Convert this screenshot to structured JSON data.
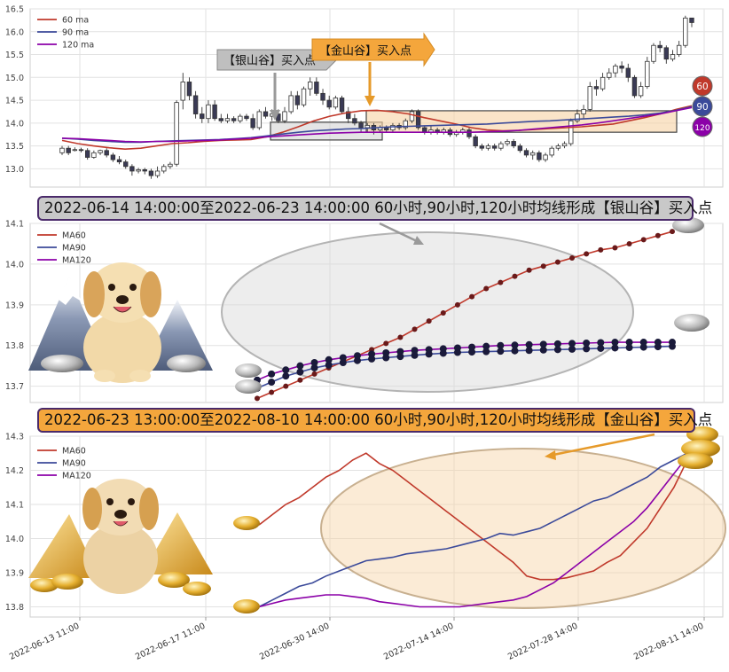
{
  "chart_data": [
    {
      "type": "candlestick",
      "title": "",
      "ylim": [
        12.6,
        16.5
      ],
      "yticks": [
        "13.0",
        "13.5",
        "14.0",
        "14.5",
        "15.0",
        "15.5",
        "16.0",
        "16.5"
      ],
      "legend": {
        "placement": "top-left",
        "entries": [
          "60 ma",
          "90 ma",
          "120 ma"
        ]
      },
      "series": [
        {
          "name": "60 ma",
          "color": "#c0392b",
          "values": [
            13.62,
            13.55,
            13.5,
            13.46,
            13.43,
            13.45,
            13.5,
            13.55,
            13.57,
            13.6,
            13.62,
            13.63,
            13.64,
            13.7,
            13.8,
            13.92,
            14.05,
            14.15,
            14.22,
            14.27,
            14.28,
            14.25,
            14.2,
            14.12,
            14.05,
            13.98,
            13.9,
            13.85,
            13.83,
            13.84,
            13.86,
            13.88,
            13.9,
            13.92,
            13.95,
            13.98,
            14.05,
            14.12,
            14.2,
            14.3,
            14.38
          ]
        },
        {
          "name": "90 ma",
          "color": "#3b4a9a",
          "values": [
            13.67,
            13.65,
            13.62,
            13.6,
            13.58,
            13.58,
            13.6,
            13.61,
            13.62,
            13.63,
            13.64,
            13.66,
            13.68,
            13.72,
            13.76,
            13.8,
            13.83,
            13.85,
            13.87,
            13.88,
            13.9,
            13.92,
            13.93,
            13.94,
            13.95,
            13.96,
            13.97,
            13.98,
            14.0,
            14.02,
            14.04,
            14.05,
            14.07,
            14.09,
            14.11,
            14.13,
            14.15,
            14.18,
            14.22,
            14.28,
            14.36
          ]
        },
        {
          "name": "120 ma",
          "color": "#8b00a8",
          "values": [
            13.67,
            13.66,
            13.64,
            13.62,
            13.6,
            13.59,
            13.6,
            13.6,
            13.61,
            13.62,
            13.63,
            13.65,
            13.67,
            13.7,
            13.72,
            13.74,
            13.76,
            13.78,
            13.79,
            13.8,
            13.8,
            13.8,
            13.8,
            13.8,
            13.8,
            13.8,
            13.8,
            13.81,
            13.82,
            13.84,
            13.87,
            13.9,
            13.93,
            13.96,
            14.0,
            14.05,
            14.1,
            14.15,
            14.2,
            14.27,
            14.34
          ]
        }
      ],
      "candles": [
        [
          13.35,
          13.45,
          13.3,
          13.5
        ],
        [
          13.45,
          13.35,
          13.3,
          13.5
        ],
        [
          13.4,
          13.42,
          13.38,
          13.47
        ],
        [
          13.42,
          13.4,
          13.36,
          13.46
        ],
        [
          13.4,
          13.25,
          13.2,
          13.45
        ],
        [
          13.25,
          13.35,
          13.22,
          13.4
        ],
        [
          13.35,
          13.4,
          13.3,
          13.42
        ],
        [
          13.4,
          13.3,
          13.25,
          13.45
        ],
        [
          13.3,
          13.2,
          13.15,
          13.35
        ],
        [
          13.2,
          13.15,
          13.1,
          13.28
        ],
        [
          13.15,
          13.05,
          13.0,
          13.2
        ],
        [
          13.05,
          12.95,
          12.85,
          13.1
        ],
        [
          12.95,
          12.98,
          12.9,
          13.02
        ],
        [
          12.98,
          12.95,
          12.88,
          13.02
        ],
        [
          12.95,
          12.85,
          12.78,
          13.0
        ],
        [
          12.85,
          12.95,
          12.8,
          13.05
        ],
        [
          12.95,
          13.05,
          12.9,
          13.1
        ],
        [
          13.05,
          13.1,
          13.0,
          13.15
        ],
        [
          13.1,
          14.45,
          13.05,
          14.5
        ],
        [
          14.5,
          14.9,
          14.3,
          15.1
        ],
        [
          14.9,
          14.6,
          14.5,
          15.0
        ],
        [
          14.6,
          14.2,
          14.1,
          14.7
        ],
        [
          14.2,
          14.1,
          14.0,
          14.35
        ],
        [
          14.1,
          14.4,
          14.0,
          14.5
        ],
        [
          14.4,
          14.1,
          14.05,
          14.5
        ],
        [
          14.1,
          14.05,
          14.0,
          14.2
        ],
        [
          14.05,
          14.1,
          14.0,
          14.2
        ],
        [
          14.1,
          14.05,
          14.0,
          14.15
        ],
        [
          14.05,
          14.15,
          14.0,
          14.2
        ],
        [
          14.15,
          14.1,
          14.05,
          14.2
        ],
        [
          14.1,
          13.9,
          13.85,
          14.2
        ],
        [
          13.9,
          14.25,
          13.85,
          14.3
        ],
        [
          14.25,
          14.15,
          14.1,
          14.35
        ],
        [
          14.15,
          14.2,
          14.05,
          14.3
        ],
        [
          14.2,
          14.05,
          14.0,
          14.3
        ],
        [
          14.05,
          14.25,
          14.0,
          14.35
        ],
        [
          14.25,
          14.6,
          14.2,
          14.7
        ],
        [
          14.6,
          14.4,
          14.3,
          14.7
        ],
        [
          14.4,
          14.75,
          14.35,
          14.8
        ],
        [
          14.75,
          14.9,
          14.6,
          15.0
        ],
        [
          14.9,
          14.65,
          14.6,
          15.0
        ],
        [
          14.65,
          14.5,
          14.4,
          14.75
        ],
        [
          14.5,
          14.35,
          14.3,
          14.6
        ],
        [
          14.35,
          14.55,
          14.3,
          14.6
        ],
        [
          14.55,
          14.25,
          14.2,
          14.6
        ],
        [
          14.25,
          14.1,
          14.0,
          14.35
        ],
        [
          14.1,
          14.0,
          13.95,
          14.2
        ],
        [
          14.0,
          13.9,
          13.8,
          14.05
        ],
        [
          13.9,
          13.95,
          13.8,
          14.0
        ],
        [
          13.95,
          13.85,
          13.75,
          14.0
        ],
        [
          13.85,
          13.9,
          13.8,
          13.95
        ],
        [
          13.9,
          13.85,
          13.8,
          13.95
        ],
        [
          13.85,
          13.95,
          13.8,
          14.0
        ],
        [
          13.95,
          13.9,
          13.85,
          14.0
        ],
        [
          13.9,
          14.05,
          13.85,
          14.1
        ],
        [
          14.05,
          14.25,
          14.0,
          14.3
        ],
        [
          14.25,
          13.9,
          13.85,
          14.3
        ],
        [
          13.9,
          13.8,
          13.75,
          13.95
        ],
        [
          13.8,
          13.85,
          13.75,
          13.95
        ],
        [
          13.85,
          13.8,
          13.75,
          13.9
        ],
        [
          13.8,
          13.85,
          13.75,
          13.9
        ],
        [
          13.85,
          13.75,
          13.7,
          13.9
        ],
        [
          13.75,
          13.8,
          13.7,
          13.85
        ],
        [
          13.8,
          13.85,
          13.75,
          13.9
        ],
        [
          13.85,
          13.7,
          13.65,
          13.9
        ],
        [
          13.7,
          13.5,
          13.45,
          13.75
        ],
        [
          13.5,
          13.45,
          13.4,
          13.55
        ],
        [
          13.45,
          13.5,
          13.4,
          13.55
        ],
        [
          13.5,
          13.45,
          13.4,
          13.55
        ],
        [
          13.45,
          13.55,
          13.4,
          13.6
        ],
        [
          13.55,
          13.6,
          13.5,
          13.65
        ],
        [
          13.6,
          13.5,
          13.45,
          13.65
        ],
        [
          13.5,
          13.4,
          13.35,
          13.55
        ],
        [
          13.4,
          13.3,
          13.25,
          13.45
        ],
        [
          13.3,
          13.35,
          13.2,
          13.4
        ],
        [
          13.35,
          13.2,
          13.15,
          13.4
        ],
        [
          13.2,
          13.3,
          13.15,
          13.35
        ],
        [
          13.3,
          13.45,
          13.25,
          13.5
        ],
        [
          13.45,
          13.5,
          13.4,
          13.55
        ],
        [
          13.5,
          13.55,
          13.45,
          13.6
        ],
        [
          13.55,
          14.05,
          13.5,
          14.1
        ],
        [
          14.05,
          14.2,
          14.0,
          14.3
        ],
        [
          14.2,
          14.3,
          14.1,
          14.4
        ],
        [
          14.3,
          14.8,
          14.25,
          14.9
        ],
        [
          14.8,
          14.75,
          14.6,
          14.95
        ],
        [
          14.75,
          15.0,
          14.7,
          15.1
        ],
        [
          15.0,
          15.1,
          14.95,
          15.2
        ],
        [
          15.1,
          15.25,
          15.0,
          15.3
        ],
        [
          15.25,
          15.2,
          15.1,
          15.35
        ],
        [
          15.2,
          15.0,
          14.9,
          15.3
        ],
        [
          15.0,
          14.6,
          14.55,
          15.05
        ],
        [
          14.6,
          14.8,
          14.55,
          14.9
        ],
        [
          14.8,
          15.35,
          14.75,
          15.45
        ],
        [
          15.35,
          15.7,
          15.3,
          15.75
        ],
        [
          15.7,
          15.65,
          15.55,
          15.8
        ],
        [
          15.65,
          15.4,
          15.3,
          15.7
        ],
        [
          15.4,
          15.5,
          15.35,
          15.6
        ],
        [
          15.5,
          15.7,
          15.45,
          15.8
        ],
        [
          15.7,
          16.3,
          15.65,
          16.35
        ],
        [
          16.3,
          16.2,
          16.1,
          16.3
        ]
      ],
      "annotations": [
        {
          "text": "【银山谷】买入点"
        },
        {
          "text": "【金山谷】买入点"
        }
      ],
      "badges": [
        "60",
        "90",
        "120"
      ]
    },
    {
      "type": "line",
      "title": "2022-06-14 14:00:00至2022-06-23 14:00:00 60小时,90小时,120小时均线形成【银山谷】买入点",
      "ylim": [
        13.66,
        14.1
      ],
      "yticks": [
        "13.7",
        "13.8",
        "13.9",
        "14.0",
        "14.1"
      ],
      "legend": {
        "placement": "top-left",
        "entries": [
          "MA60",
          "MA90",
          "MA120"
        ]
      },
      "series": [
        {
          "name": "MA60",
          "color": "#c0392b",
          "values": [
            13.67,
            13.685,
            13.7,
            13.715,
            13.73,
            13.745,
            13.76,
            13.775,
            13.79,
            13.805,
            13.82,
            13.84,
            13.86,
            13.88,
            13.9,
            13.92,
            13.94,
            13.955,
            13.97,
            13.985,
            13.995,
            14.005,
            14.015,
            14.025,
            14.035,
            14.04,
            14.05,
            14.06,
            14.07,
            14.08
          ]
        },
        {
          "name": "MA90",
          "color": "#3b4a9a",
          "values": [
            13.695,
            13.71,
            13.725,
            13.735,
            13.745,
            13.752,
            13.758,
            13.763,
            13.767,
            13.77,
            13.773,
            13.776,
            13.779,
            13.781,
            13.783,
            13.784,
            13.785,
            13.786,
            13.787,
            13.788,
            13.789,
            13.79,
            13.791,
            13.792,
            13.793,
            13.794,
            13.795,
            13.796,
            13.797,
            13.798
          ]
        },
        {
          "name": "MA120",
          "color": "#8b00a8",
          "values": [
            13.715,
            13.73,
            13.74,
            13.75,
            13.758,
            13.765,
            13.77,
            13.775,
            13.779,
            13.782,
            13.785,
            13.788,
            13.79,
            13.792,
            13.794,
            13.796,
            13.798,
            13.8,
            13.801,
            13.802,
            13.803,
            13.804,
            13.805,
            13.806,
            13.807,
            13.808,
            13.808,
            13.808,
            13.808,
            13.808
          ]
        }
      ]
    },
    {
      "type": "line",
      "title": "2022-06-23 13:00:00至2022-08-10 14:00:00 60小时,90小时,120小时均线形成【金山谷】买入点",
      "ylim": [
        13.77,
        14.3
      ],
      "yticks": [
        "13.8",
        "13.9",
        "14.0",
        "14.1",
        "14.2",
        "14.3"
      ],
      "xticks": [
        "2022-06-13 11:00",
        "2022-06-17 11:00",
        "2022-06-30 14:00",
        "2022-07-14 14:00",
        "2022-07-28 14:00",
        "2022-08-11 14:00"
      ],
      "legend": {
        "placement": "top-left",
        "entries": [
          "MA60",
          "MA90",
          "MA120"
        ]
      },
      "series": [
        {
          "name": "MA60",
          "color": "#c0392b",
          "values": [
            14.04,
            14.07,
            14.1,
            14.12,
            14.15,
            14.18,
            14.2,
            14.23,
            14.25,
            14.22,
            14.2,
            14.17,
            14.14,
            14.11,
            14.08,
            14.05,
            14.02,
            13.99,
            13.96,
            13.93,
            13.89,
            13.88,
            13.88,
            13.885,
            13.895,
            13.905,
            13.93,
            13.95,
            13.99,
            14.03,
            14.09,
            14.15,
            14.23
          ]
        },
        {
          "name": "MA90",
          "color": "#3b4a9a",
          "values": [
            13.8,
            13.82,
            13.84,
            13.86,
            13.87,
            13.89,
            13.905,
            13.92,
            13.935,
            13.94,
            13.945,
            13.955,
            13.96,
            13.965,
            13.97,
            13.98,
            13.99,
            14.0,
            14.015,
            14.01,
            14.02,
            14.03,
            14.05,
            14.07,
            14.09,
            14.11,
            14.12,
            14.14,
            14.16,
            14.18,
            14.21,
            14.23,
            14.25
          ]
        },
        {
          "name": "MA120",
          "color": "#8b00a8",
          "values": [
            13.8,
            13.81,
            13.82,
            13.825,
            13.83,
            13.835,
            13.835,
            13.83,
            13.825,
            13.815,
            13.81,
            13.805,
            13.8,
            13.8,
            13.8,
            13.8,
            13.805,
            13.81,
            13.815,
            13.82,
            13.83,
            13.85,
            13.87,
            13.9,
            13.93,
            13.96,
            13.99,
            14.02,
            14.05,
            14.09,
            14.14,
            14.19,
            14.24
          ]
        }
      ]
    }
  ]
}
